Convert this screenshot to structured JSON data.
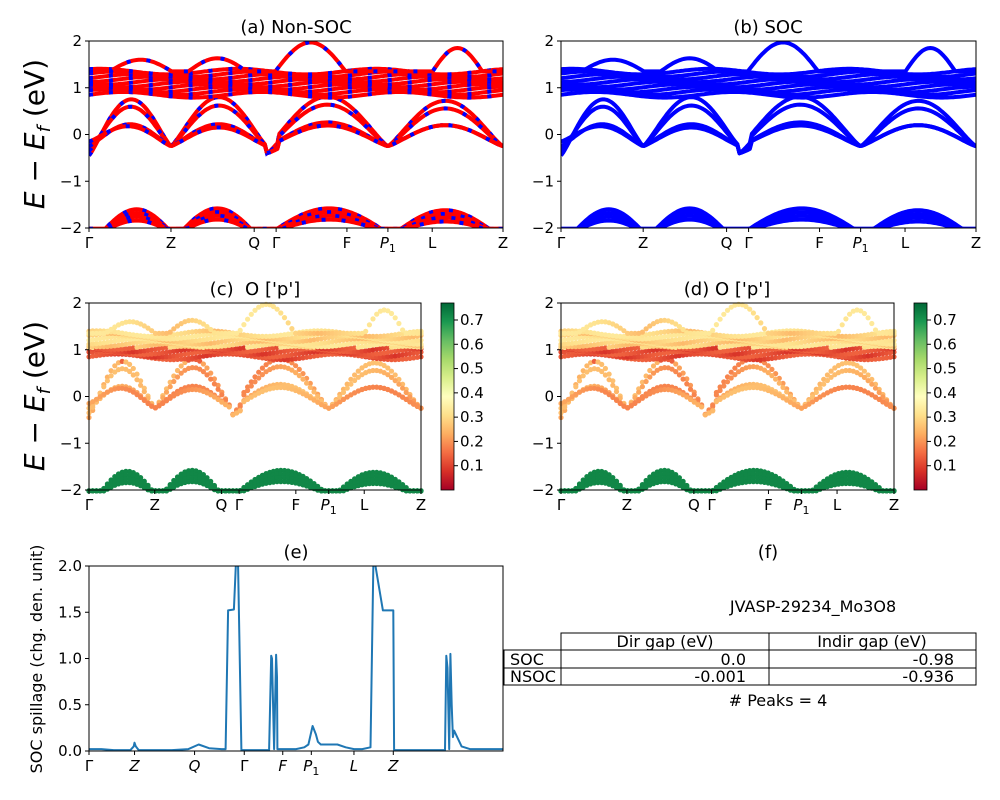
{
  "figure_label": "JVASP-29234_Mo3O8",
  "chart_data": [
    {
      "id": "a",
      "type": "line",
      "title": "(a) Non-SOC",
      "ylabel": "E - E_f (eV)",
      "ylim": [
        -2,
        2
      ],
      "yticks": [
        "2",
        "1",
        "0",
        "−1",
        "−2"
      ],
      "ytick_values": [
        2,
        1,
        0,
        -1,
        -2
      ],
      "kpath": [
        {
          "label": "Γ",
          "pos": 0.0
        },
        {
          "label": "Z",
          "pos": 0.198
        },
        {
          "label": "Q",
          "pos": 0.399
        },
        {
          "label": "Γ",
          "pos": 0.452
        },
        {
          "label": "F",
          "pos": 0.623
        },
        {
          "label": "P₁",
          "pos": 0.722
        },
        {
          "label": "L",
          "pos": 0.829
        },
        {
          "label": "Z",
          "pos": 1.0
        }
      ],
      "series_colors": [
        "#ff0000",
        "#0000ff"
      ],
      "style": "dashed-overlay",
      "description": "Non-SOC bands (red) overlaid with SOC bands (blue dashes)"
    },
    {
      "id": "b",
      "type": "line",
      "title": "(b) SOC",
      "ylim": [
        -2,
        2
      ],
      "yticks": [
        "2",
        "1",
        "0",
        "−1",
        "−2"
      ],
      "ytick_values": [
        2,
        1,
        0,
        -1,
        -2
      ],
      "kpath_ref": "a",
      "series_colors": [
        "#0000ff"
      ]
    },
    {
      "id": "c",
      "type": "scatter",
      "title": "(c)  O ['p']",
      "ylabel": "E - E_f (eV)",
      "ylim": [
        -2,
        2
      ],
      "yticks": [
        "2",
        "1",
        "0",
        "−1",
        "−2"
      ],
      "ytick_values": [
        2,
        1,
        0,
        -1,
        -2
      ],
      "colormap": "RdYlGn",
      "colorbar": {
        "range": [
          0.0,
          0.77
        ],
        "ticks": [
          "0.7",
          "0.6",
          "0.5",
          "0.4",
          "0.3",
          "0.2",
          "0.1"
        ],
        "tick_values": [
          0.7,
          0.6,
          0.5,
          0.4,
          0.3,
          0.2,
          0.1
        ]
      },
      "kpath_ref": "a"
    },
    {
      "id": "d",
      "type": "scatter",
      "title": "(d) O ['p']",
      "ylim": [
        -2,
        2
      ],
      "yticks": [
        "2",
        "1",
        "0",
        "−1",
        "−2"
      ],
      "ytick_values": [
        2,
        1,
        0,
        -1,
        -2
      ],
      "colormap": "RdYlGn",
      "colorbar": {
        "range": [
          0.0,
          0.77
        ],
        "ticks": [
          "0.7",
          "0.6",
          "0.5",
          "0.4",
          "0.3",
          "0.2",
          "0.1"
        ],
        "tick_values": [
          0.7,
          0.6,
          0.5,
          0.4,
          0.3,
          0.2,
          0.1
        ]
      },
      "kpath_ref": "a"
    },
    {
      "id": "e",
      "type": "line",
      "title": "(e)",
      "ylabel": "SOC spillage (chg. den. unit)",
      "ylim": [
        0.0,
        2.0
      ],
      "yticks": [
        "2.0",
        "1.5",
        "1.0",
        "0.5",
        "0.0"
      ],
      "ytick_values": [
        2.0,
        1.5,
        1.0,
        0.5,
        0.0
      ],
      "xticks": [
        {
          "label": "Γ",
          "pos": 0.0
        },
        {
          "label": "Z",
          "pos": 0.11
        },
        {
          "label": "Q",
          "pos": 0.255
        },
        {
          "label": "Γ",
          "pos": 0.375
        },
        {
          "label": "F",
          "pos": 0.468
        },
        {
          "label": "P₁",
          "pos": 0.537
        },
        {
          "label": "L",
          "pos": 0.64
        },
        {
          "label": "Z",
          "pos": 0.735
        }
      ],
      "color": "#1f77b4",
      "x": [
        0.0,
        0.03,
        0.06,
        0.1,
        0.108,
        0.11,
        0.113,
        0.12,
        0.2,
        0.24,
        0.265,
        0.29,
        0.32,
        0.33,
        0.336,
        0.35,
        0.355,
        0.36,
        0.368,
        0.382,
        0.39,
        0.435,
        0.44,
        0.442,
        0.447,
        0.452,
        0.454,
        0.455,
        0.46,
        0.5,
        0.52,
        0.53,
        0.54,
        0.548,
        0.553,
        0.56,
        0.575,
        0.6,
        0.62,
        0.64,
        0.66,
        0.68,
        0.687,
        0.69,
        0.71,
        0.72,
        0.735,
        0.737,
        0.742,
        0.86,
        0.863,
        0.866,
        0.87,
        0.873,
        0.876,
        0.879,
        0.882,
        0.9,
        0.92,
        0.95,
        1.0
      ],
      "values": [
        0.02,
        0.02,
        0.01,
        0.01,
        0.05,
        0.09,
        0.05,
        0.01,
        0.01,
        0.02,
        0.07,
        0.03,
        0.02,
        0.02,
        1.52,
        1.53,
        2.05,
        2.05,
        0.01,
        0.01,
        0.01,
        0.01,
        1.03,
        1.0,
        0.02,
        1.04,
        0.8,
        0.02,
        0.02,
        0.02,
        0.04,
        0.07,
        0.27,
        0.18,
        0.1,
        0.07,
        0.07,
        0.07,
        0.04,
        0.02,
        0.02,
        0.04,
        2.05,
        2.05,
        1.52,
        1.52,
        1.52,
        0.01,
        0.01,
        0.01,
        1.03,
        0.9,
        0.02,
        1.05,
        0.5,
        0.15,
        0.22,
        0.05,
        0.02,
        0.02,
        0.02
      ]
    },
    {
      "id": "f",
      "type": "table",
      "title": "(f)",
      "subtitle": "JVASP-29234_Mo3O8",
      "columns": [
        "Dir gap (eV)",
        "Indir gap (eV)"
      ],
      "rows": [
        {
          "label": "SOC",
          "values": [
            "0.0",
            "-0.98"
          ]
        },
        {
          "label": "NSOC",
          "values": [
            "-0.001",
            "-0.936"
          ]
        }
      ],
      "footer": "# Peaks = 4"
    }
  ]
}
